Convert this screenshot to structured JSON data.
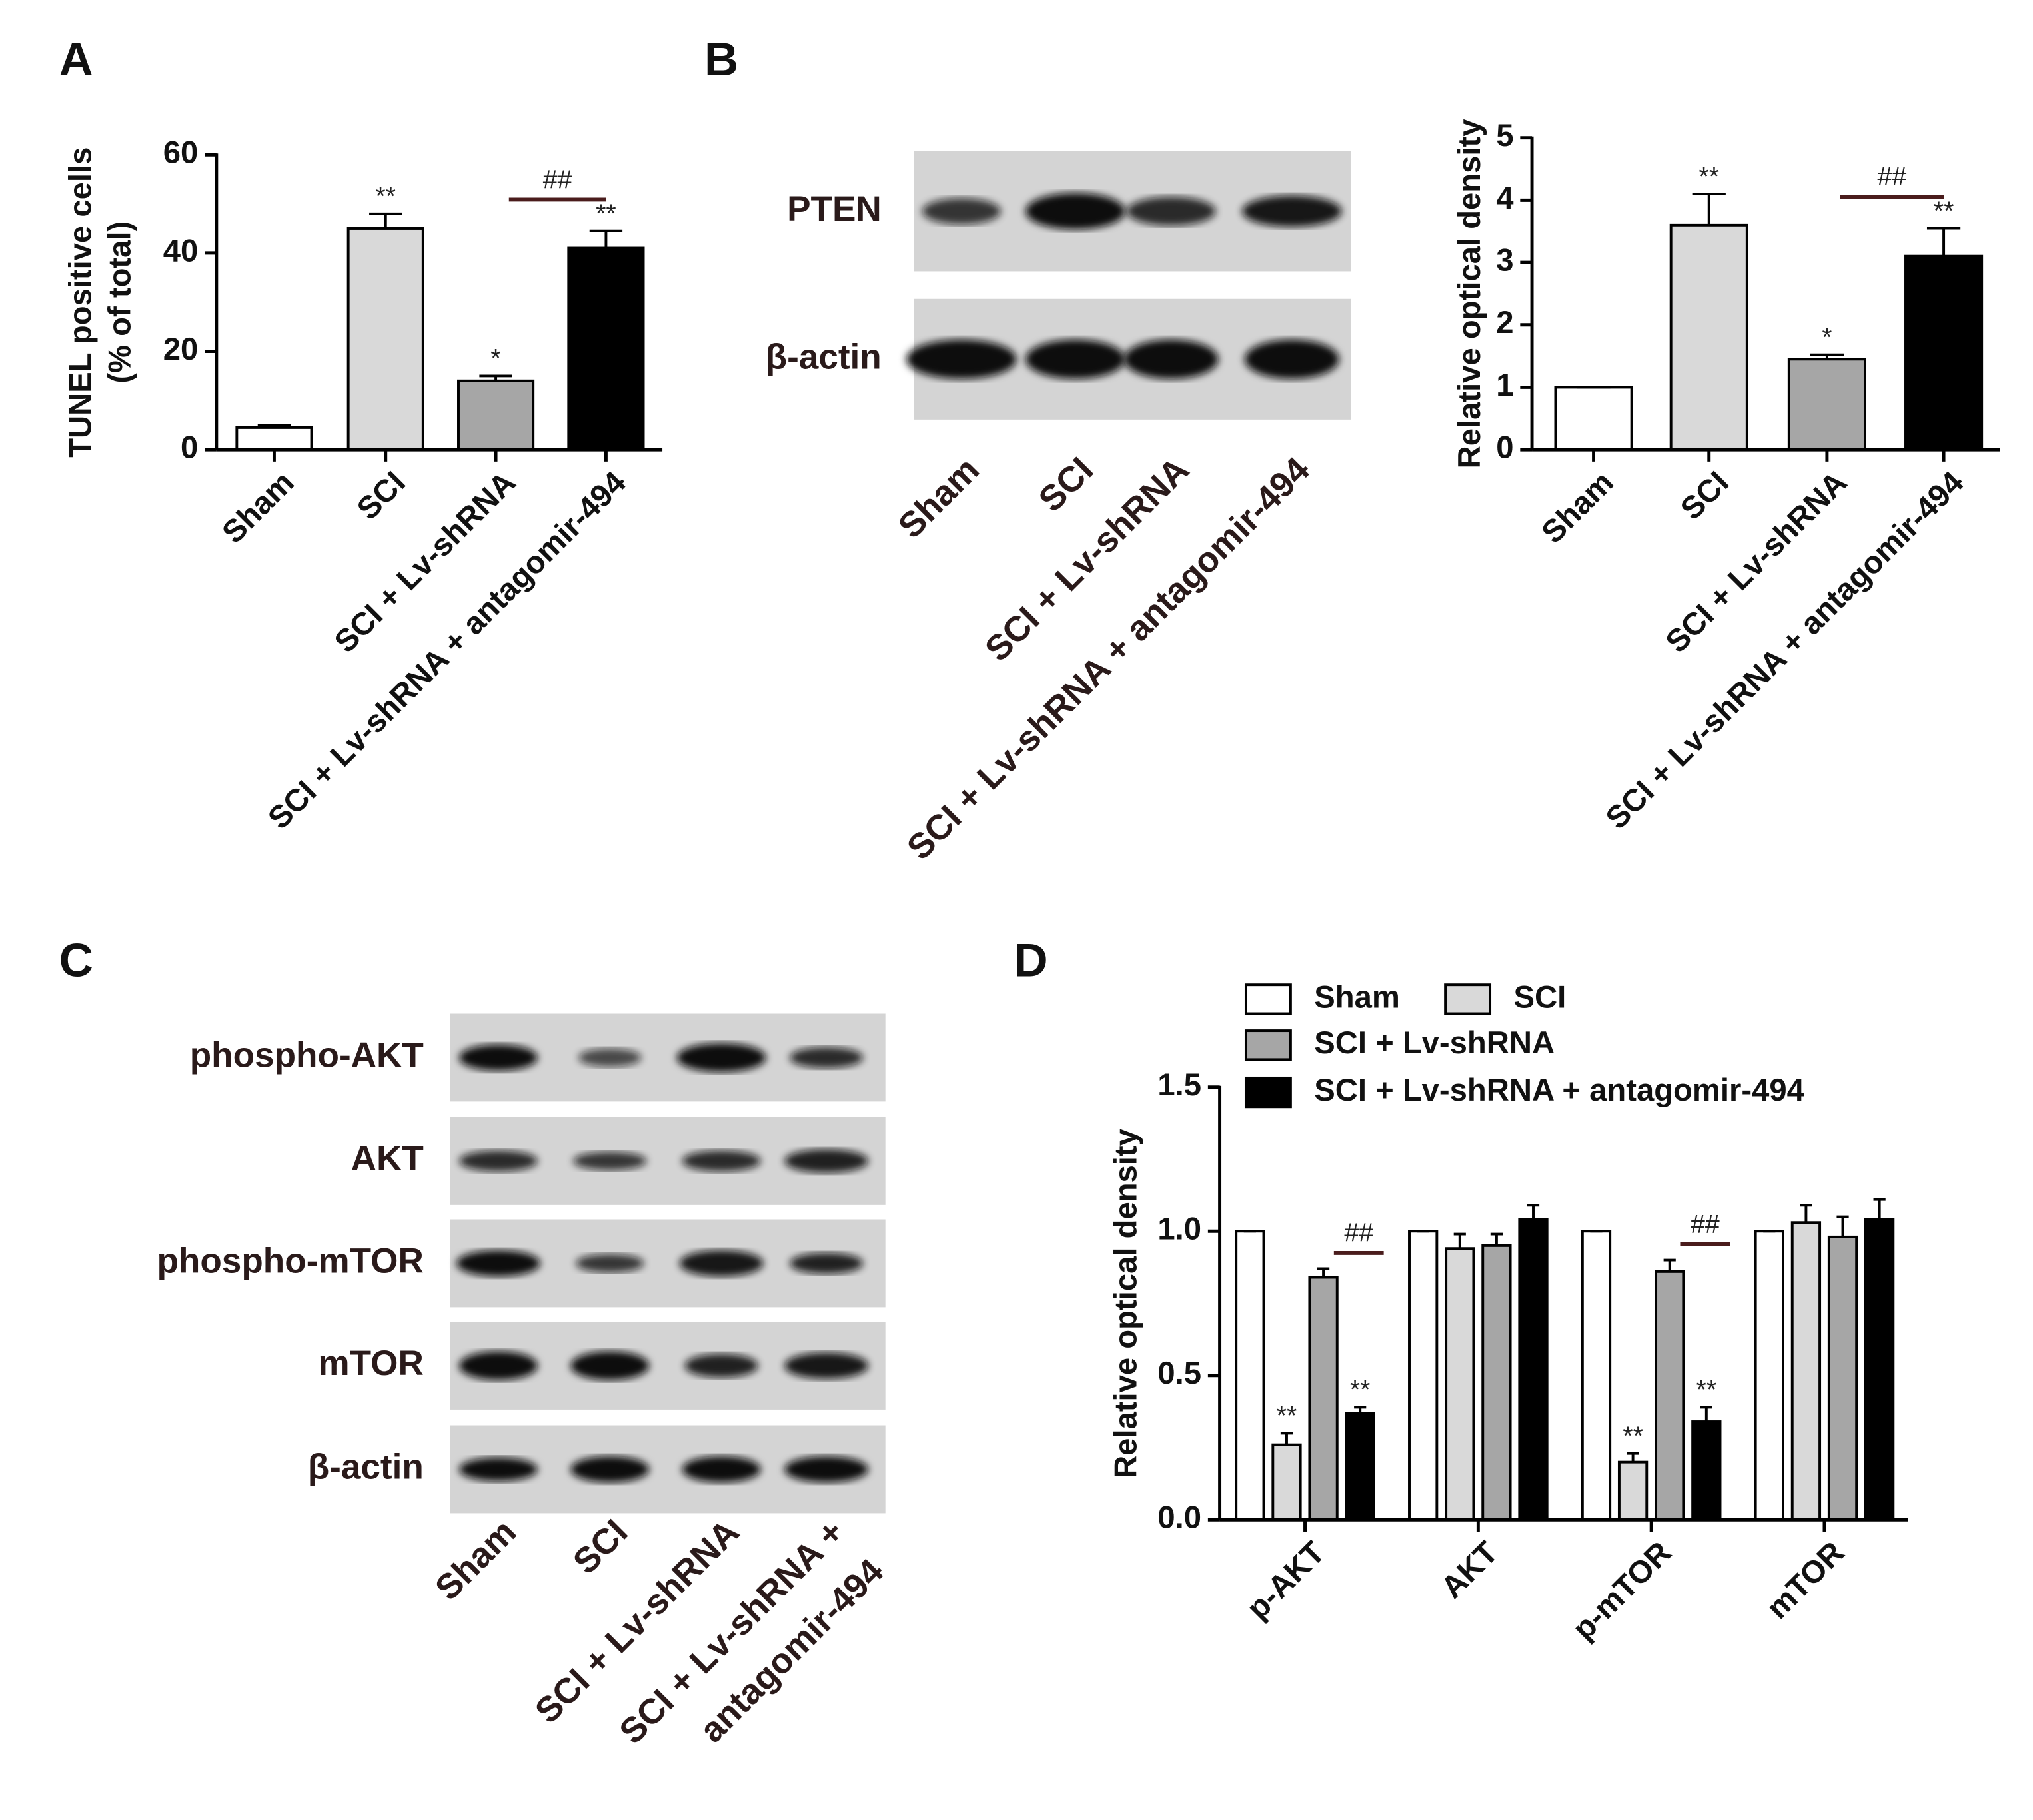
{
  "panel_labels": [
    "A",
    "B",
    "C",
    "D"
  ],
  "blots": [
    {
      "rows": [
        "PTEN",
        "β-actin"
      ],
      "lanes": [
        [
          "Sham"
        ],
        [
          "SCI"
        ],
        [
          "SCI + Lv-shRNA"
        ],
        [
          "SCI + Lv-shRNA + antagomir-494"
        ]
      ]
    },
    {
      "rows": [
        "phospho-AKT",
        "AKT",
        "phospho-mTOR",
        "mTOR",
        "β-actin"
      ],
      "lanes": [
        [
          "Sham"
        ],
        [
          "SCI"
        ],
        [
          "SCI + Lv-shRNA"
        ],
        [
          "SCI + Lv-shRNA +",
          "antagomir-494"
        ]
      ]
    }
  ],
  "chart_data": [
    {
      "type": "bar",
      "ylabel": [
        "TUNEL positive cells",
        "(% of total)"
      ],
      "categories": [
        "Sham",
        "SCI",
        "SCI + Lv-shRNA",
        "SCI + Lv-shRNA + antagomir-494"
      ],
      "values": [
        4.5,
        45,
        14,
        41
      ],
      "errors": [
        0.5,
        3,
        1,
        3.5
      ],
      "colors": [
        "#ffffff",
        "#d9d9d9",
        "#a6a6a6",
        "#000000"
      ],
      "sig_labels": [
        null,
        "**",
        "*",
        "**"
      ],
      "bracket": {
        "label": "##",
        "categories": [
          "SCI + Lv-shRNA",
          "SCI + Lv-shRNA + antagomir-494"
        ]
      },
      "ylim": [
        0,
        60
      ],
      "yticks": [
        0,
        20,
        40,
        60
      ]
    },
    {
      "type": "bar",
      "ylabel": [
        "Relative optical density"
      ],
      "categories": [
        "Sham",
        "SCI",
        "SCI + Lv-shRNA",
        "SCI + Lv-shRNA + antagomir-494"
      ],
      "values": [
        1,
        3.6,
        1.45,
        3.1
      ],
      "errors": [
        0,
        0.5,
        0.07,
        0.45
      ],
      "colors": [
        "#ffffff",
        "#d9d9d9",
        "#a6a6a6",
        "#000000"
      ],
      "sig_labels": [
        null,
        "**",
        "*",
        "**"
      ],
      "bracket": {
        "label": "##",
        "categories": [
          "SCI + Lv-shRNA",
          "SCI + Lv-shRNA + antagomir-494"
        ]
      },
      "ylim": [
        0,
        5
      ],
      "yticks": [
        0,
        1,
        2,
        3,
        4,
        5
      ]
    },
    {
      "type": "grouped_bar",
      "ylabel": [
        "Relative optical density"
      ],
      "categories": [
        "p-AKT",
        "AKT",
        "p-mTOR",
        "mTOR"
      ],
      "legend": "top",
      "series": [
        {
          "name": "Sham",
          "color": "#ffffff",
          "values": [
            1,
            1,
            1,
            1
          ],
          "errors": [
            0,
            0,
            0,
            0
          ],
          "sig_labels": [
            null,
            null,
            null,
            null
          ]
        },
        {
          "name": "SCI",
          "color": "#d9d9d9",
          "values": [
            0.26,
            0.94,
            0.2,
            1.03
          ],
          "errors": [
            0.04,
            0.05,
            0.03,
            0.06
          ],
          "sig_labels": [
            "**",
            null,
            "**",
            null
          ]
        },
        {
          "name": "SCI + Lv-shRNA",
          "color": "#a6a6a6",
          "values": [
            0.84,
            0.95,
            0.86,
            0.98
          ],
          "errors": [
            0.03,
            0.04,
            0.04,
            0.07
          ],
          "sig_labels": [
            null,
            null,
            null,
            null
          ]
        },
        {
          "name": "SCI + Lv-shRNA + antagomir-494",
          "color": "#000000",
          "values": [
            0.37,
            1.04,
            0.34,
            1.04
          ],
          "errors": [
            0.02,
            0.05,
            0.05,
            0.07
          ],
          "sig_labels": [
            "**",
            null,
            "**",
            null
          ]
        }
      ],
      "brackets": [
        {
          "label": "##",
          "category": "p-AKT",
          "series": [
            "SCI + Lv-shRNA",
            "SCI + Lv-shRNA + antagomir-494"
          ]
        },
        {
          "label": "##",
          "category": "p-mTOR",
          "series": [
            "SCI + Lv-shRNA",
            "SCI + Lv-shRNA + antagomir-494"
          ]
        }
      ],
      "ylim": [
        0,
        1.5
      ],
      "yticks": [
        {
          "value": 0,
          "label": "0.0"
        },
        {
          "value": 0.5,
          "label": "0.5"
        },
        {
          "value": 1,
          "label": "1.0"
        },
        {
          "value": 1.5,
          "label": "1.5"
        }
      ]
    }
  ]
}
